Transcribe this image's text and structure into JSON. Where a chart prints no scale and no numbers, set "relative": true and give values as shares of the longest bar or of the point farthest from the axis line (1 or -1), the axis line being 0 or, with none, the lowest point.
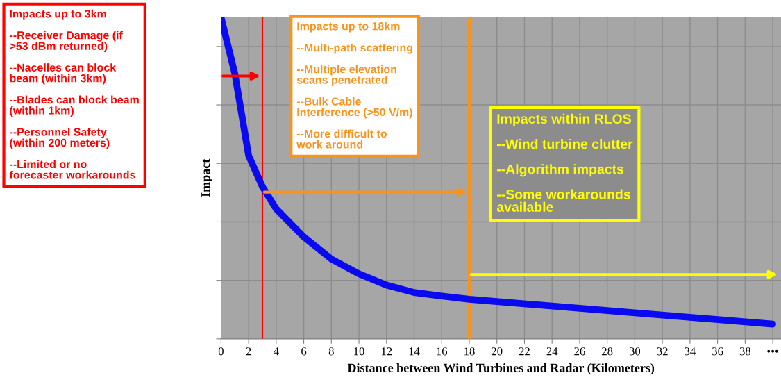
{
  "chart_data": {
    "type": "line",
    "relative": true,
    "xlabel": "Distance between Wind Turbines and Radar (Kilometers)",
    "ylabel": "Impact",
    "x": [
      0,
      1,
      2,
      3,
      4,
      6,
      8,
      10,
      12,
      14,
      16,
      18,
      40
    ],
    "series": [
      {
        "color": "#0a0af0",
        "values": [
          1.0,
          0.825,
          0.57,
          0.473,
          0.404,
          0.317,
          0.248,
          0.202,
          0.167,
          0.144,
          0.133,
          0.123,
          0.046
        ]
      }
    ],
    "xlim": [
      0,
      40.6
    ],
    "xticks": [
      0,
      2,
      4,
      6,
      8,
      10,
      12,
      14,
      16,
      18,
      20,
      22,
      24,
      26,
      28,
      30,
      32,
      34,
      36,
      38,
      {
        "value": 40,
        "label": "•••"
      }
    ],
    "grid": true,
    "marker": "none",
    "line_style": "solid",
    "ref_lines": [
      {
        "axis": "x",
        "value": 3,
        "color": "#ff0000"
      },
      {
        "axis": "x",
        "value": 18,
        "color": "#f7941d"
      }
    ],
    "annotations": [
      "Impacts up to 3km\n\n--Receiver Damage (if\n>53 dBm returned)\n\n--Nacelles can block\nbeam (within 3km)\n\n--Blades can block beam\n(within 1km)\n\n--Personnel Safety\n(within 200 meters)\n\n--Limited or no\nforecaster workarounds",
      "Impacts up to 18km\n\n--Multi-path scattering\n\n--Multiple elevation\nscans penetrated\n\n--Bulk Cable\nInterference (>50 V/m)\n\n--More difficult to\nwork around",
      "Impacts within RLOS\n\n--Wind turbine clutter\n\n--Algorithm impacts\n\n--Some workarounds\navailable"
    ]
  }
}
